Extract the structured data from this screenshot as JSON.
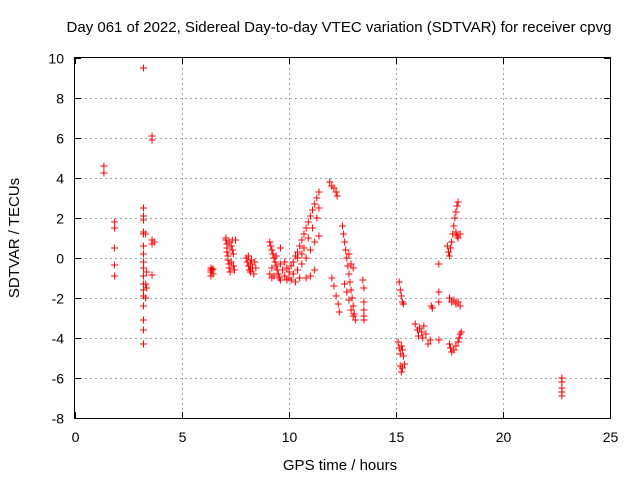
{
  "chart_data": {
    "type": "scatter",
    "title": "Day 061 of 2022, Sidereal Day-to-day VTEC variation (SDTVAR) for receiver cpvg",
    "xlabel": "GPS time / hours",
    "ylabel": "SDTVAR / TECUs",
    "xlim": [
      0,
      25
    ],
    "ylim": [
      -8,
      10
    ],
    "xticks": [
      0,
      5,
      10,
      15,
      20,
      25
    ],
    "yticks": [
      -8,
      -6,
      -4,
      -2,
      0,
      2,
      4,
      6,
      8,
      10
    ],
    "grid": true,
    "marker": "+",
    "color": "#ff0000",
    "series": [
      {
        "name": "SDTVAR",
        "points": [
          [
            1.35,
            4.6
          ],
          [
            1.35,
            4.25
          ],
          [
            1.85,
            1.8
          ],
          [
            1.85,
            1.5
          ],
          [
            1.85,
            0.5
          ],
          [
            1.85,
            -0.35
          ],
          [
            1.85,
            -0.9
          ],
          [
            3.2,
            9.5
          ],
          [
            3.2,
            2.5
          ],
          [
            3.2,
            2.1
          ],
          [
            3.2,
            1.9
          ],
          [
            3.2,
            1.3
          ],
          [
            3.2,
            1.2
          ],
          [
            3.2,
            0.6
          ],
          [
            3.2,
            0.2
          ],
          [
            3.2,
            -0.2
          ],
          [
            3.2,
            -0.5
          ],
          [
            3.2,
            -0.9
          ],
          [
            3.2,
            -1.3
          ],
          [
            3.2,
            -1.6
          ],
          [
            3.2,
            -1.9
          ],
          [
            3.2,
            -2.4
          ],
          [
            3.2,
            -3.1
          ],
          [
            3.2,
            -3.6
          ],
          [
            3.2,
            -4.3
          ],
          [
            3.3,
            1.2
          ],
          [
            3.35,
            -0.7
          ],
          [
            3.3,
            -1.3
          ],
          [
            3.3,
            -2.0
          ],
          [
            3.35,
            -1.5
          ],
          [
            3.6,
            6.1
          ],
          [
            3.6,
            5.9
          ],
          [
            3.6,
            0.9
          ],
          [
            3.7,
            0.8
          ],
          [
            3.6,
            0.7
          ],
          [
            3.6,
            -0.85
          ],
          [
            6.35,
            -0.5
          ],
          [
            6.35,
            -0.6
          ],
          [
            6.35,
            -0.7
          ],
          [
            6.35,
            -0.9
          ],
          [
            6.4,
            -0.6
          ],
          [
            6.45,
            -0.55
          ],
          [
            6.45,
            -0.8
          ],
          [
            7.05,
            1.0
          ],
          [
            7.05,
            0.9
          ],
          [
            7.1,
            0.7
          ],
          [
            7.1,
            0.5
          ],
          [
            7.1,
            0.3
          ],
          [
            7.15,
            0.1
          ],
          [
            7.15,
            -0.1
          ],
          [
            7.2,
            -0.3
          ],
          [
            7.2,
            -0.5
          ],
          [
            7.25,
            -0.7
          ],
          [
            7.3,
            0.6
          ],
          [
            7.35,
            0.4
          ],
          [
            7.4,
            0.2
          ],
          [
            7.3,
            -0.2
          ],
          [
            7.4,
            -0.4
          ],
          [
            7.45,
            -0.6
          ],
          [
            7.5,
            0.9
          ],
          [
            7.2,
            0.8
          ],
          [
            7.35,
            0.9
          ],
          [
            8.0,
            0.0
          ],
          [
            8.05,
            -0.2
          ],
          [
            8.1,
            -0.4
          ],
          [
            8.1,
            0.1
          ],
          [
            8.15,
            -0.6
          ],
          [
            8.2,
            -0.3
          ],
          [
            8.25,
            -0.1
          ],
          [
            8.3,
            -0.5
          ],
          [
            8.35,
            -0.8
          ],
          [
            8.4,
            -0.2
          ],
          [
            8.45,
            -0.5
          ],
          [
            8.2,
            -0.7
          ],
          [
            9.1,
            0.8
          ],
          [
            9.15,
            0.6
          ],
          [
            9.2,
            0.4
          ],
          [
            9.25,
            0.2
          ],
          [
            9.3,
            0.0
          ],
          [
            9.35,
            -0.2
          ],
          [
            9.4,
            -0.4
          ],
          [
            9.45,
            -0.6
          ],
          [
            9.5,
            -0.8
          ],
          [
            9.55,
            -1.0
          ],
          [
            9.6,
            -1.1
          ],
          [
            9.2,
            -0.5
          ],
          [
            9.3,
            -0.9
          ],
          [
            9.4,
            0.1
          ],
          [
            9.6,
            -0.3
          ],
          [
            9.7,
            -0.6
          ],
          [
            9.8,
            -0.9
          ],
          [
            9.9,
            -1.1
          ],
          [
            9.8,
            -0.2
          ],
          [
            9.9,
            -0.5
          ],
          [
            9.6,
            0.5
          ],
          [
            9.1,
            -0.8
          ],
          [
            9.2,
            -1.0
          ],
          [
            10.0,
            -0.7
          ],
          [
            10.1,
            -0.4
          ],
          [
            10.2,
            -0.2
          ],
          [
            10.3,
            0.1
          ],
          [
            10.4,
            0.3
          ],
          [
            10.5,
            0.6
          ],
          [
            10.6,
            0.9
          ],
          [
            10.7,
            1.2
          ],
          [
            10.8,
            1.5
          ],
          [
            10.9,
            1.8
          ],
          [
            11.0,
            2.1
          ],
          [
            11.1,
            2.4
          ],
          [
            11.2,
            2.7
          ],
          [
            11.3,
            3.0
          ],
          [
            11.4,
            3.3
          ],
          [
            10.2,
            -0.8
          ],
          [
            10.4,
            -0.6
          ],
          [
            10.6,
            -0.3
          ],
          [
            10.8,
            0.0
          ],
          [
            11.0,
            0.4
          ],
          [
            11.2,
            0.8
          ],
          [
            11.4,
            1.1
          ],
          [
            10.5,
            -1.0
          ],
          [
            10.8,
            -1.0
          ],
          [
            11.0,
            -0.9
          ],
          [
            11.2,
            -0.6
          ],
          [
            10.1,
            -1.1
          ],
          [
            10.3,
            -1.2
          ],
          [
            10.7,
            0.5
          ],
          [
            10.9,
            1.0
          ],
          [
            11.1,
            1.5
          ],
          [
            11.3,
            2.0
          ],
          [
            11.4,
            2.5
          ],
          [
            10.4,
            0.0
          ],
          [
            10.6,
            0.2
          ],
          [
            10.0,
            -1.0
          ],
          [
            11.9,
            3.8
          ],
          [
            12.0,
            3.6
          ],
          [
            12.1,
            3.5
          ],
          [
            12.2,
            3.3
          ],
          [
            12.25,
            3.1
          ],
          [
            12.0,
            -1.0
          ],
          [
            12.1,
            -1.4
          ],
          [
            12.2,
            -1.9
          ],
          [
            12.3,
            -2.3
          ],
          [
            12.35,
            -2.7
          ],
          [
            12.5,
            1.6
          ],
          [
            12.55,
            1.2
          ],
          [
            12.6,
            0.8
          ],
          [
            12.65,
            0.4
          ],
          [
            12.7,
            0.0
          ],
          [
            12.75,
            -0.4
          ],
          [
            12.8,
            -0.8
          ],
          [
            12.85,
            -1.2
          ],
          [
            12.9,
            -1.6
          ],
          [
            12.95,
            -2.0
          ],
          [
            13.0,
            -2.4
          ],
          [
            13.05,
            -2.8
          ],
          [
            13.1,
            -3.1
          ],
          [
            12.8,
            0.2
          ],
          [
            12.9,
            -0.3
          ],
          [
            13.0,
            -0.5
          ],
          [
            12.6,
            -1.3
          ],
          [
            12.7,
            -1.7
          ],
          [
            12.8,
            -2.1
          ],
          [
            12.9,
            -2.6
          ],
          [
            13.0,
            -2.9
          ],
          [
            13.45,
            -1.1
          ],
          [
            13.5,
            -1.5
          ],
          [
            13.5,
            -2.2
          ],
          [
            13.5,
            -2.6
          ],
          [
            13.5,
            -2.9
          ],
          [
            13.5,
            -3.1
          ],
          [
            15.15,
            -1.2
          ],
          [
            15.2,
            -1.6
          ],
          [
            15.25,
            -1.9
          ],
          [
            15.3,
            -2.2
          ],
          [
            15.35,
            -2.3
          ],
          [
            15.1,
            -4.2
          ],
          [
            15.15,
            -4.5
          ],
          [
            15.2,
            -4.8
          ],
          [
            15.25,
            -4.4
          ],
          [
            15.3,
            -4.6
          ],
          [
            15.35,
            -4.9
          ],
          [
            15.2,
            -5.4
          ],
          [
            15.25,
            -5.7
          ],
          [
            15.3,
            -5.5
          ],
          [
            15.4,
            -5.3
          ],
          [
            15.9,
            -3.3
          ],
          [
            16.0,
            -3.6
          ],
          [
            16.05,
            -3.9
          ],
          [
            16.1,
            -3.5
          ],
          [
            16.2,
            -3.7
          ],
          [
            16.25,
            -4.0
          ],
          [
            16.3,
            -3.4
          ],
          [
            16.4,
            -3.8
          ],
          [
            16.5,
            -4.3
          ],
          [
            16.6,
            -4.1
          ],
          [
            16.65,
            -2.4
          ],
          [
            16.7,
            -2.5
          ],
          [
            17.0,
            -0.3
          ],
          [
            17.0,
            -1.7
          ],
          [
            17.0,
            -2.2
          ],
          [
            17.0,
            -4.1
          ],
          [
            17.4,
            0.6
          ],
          [
            17.45,
            0.3
          ],
          [
            17.5,
            0.1
          ],
          [
            17.55,
            0.5
          ],
          [
            17.6,
            0.8
          ],
          [
            17.65,
            1.2
          ],
          [
            17.7,
            1.6
          ],
          [
            17.75,
            2.0
          ],
          [
            17.8,
            2.3
          ],
          [
            17.85,
            2.6
          ],
          [
            17.9,
            2.8
          ],
          [
            17.8,
            1.3
          ],
          [
            17.85,
            1.1
          ],
          [
            17.9,
            1.0
          ],
          [
            18.0,
            1.2
          ],
          [
            17.5,
            -2.0
          ],
          [
            17.6,
            -2.2
          ],
          [
            17.7,
            -2.1
          ],
          [
            17.8,
            -2.3
          ],
          [
            17.9,
            -2.2
          ],
          [
            18.0,
            -2.4
          ],
          [
            17.5,
            -4.3
          ],
          [
            17.55,
            -4.5
          ],
          [
            17.6,
            -4.7
          ],
          [
            17.7,
            -4.6
          ],
          [
            17.8,
            -4.4
          ],
          [
            17.9,
            -4.2
          ],
          [
            17.95,
            -4.0
          ],
          [
            18.0,
            -3.8
          ],
          [
            18.05,
            -3.7
          ],
          [
            22.75,
            -6.0
          ],
          [
            22.75,
            -6.2
          ],
          [
            22.75,
            -6.5
          ],
          [
            22.75,
            -6.7
          ],
          [
            22.75,
            -6.9
          ]
        ]
      }
    ]
  }
}
